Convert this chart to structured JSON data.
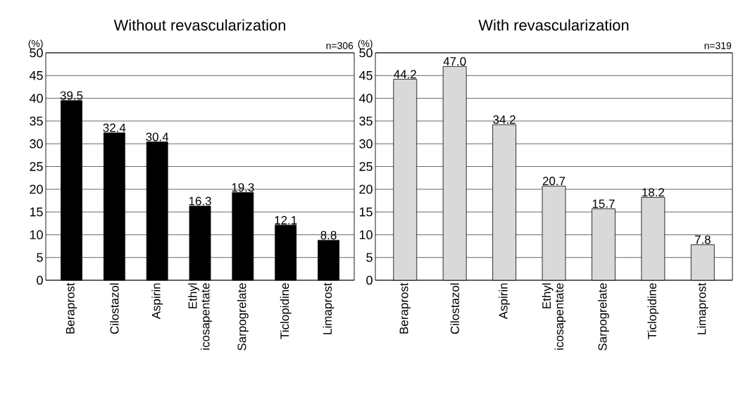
{
  "chart_data": [
    {
      "type": "bar",
      "title": "Without revascularization",
      "ylabel": "(%)",
      "annotations": [
        "n=306"
      ],
      "categories": [
        "Beraprost",
        "Cilostazol",
        "Aspirin",
        "Ethyl icosapentate",
        "Sarpogrelate",
        "Ticlopidine",
        "Limaprost"
      ],
      "values": [
        39.5,
        32.4,
        30.4,
        16.3,
        19.3,
        12.1,
        8.8
      ],
      "color": "#000000",
      "ylim": [
        0,
        50
      ],
      "yticks": [
        0,
        5,
        10,
        15,
        20,
        25,
        30,
        35,
        40,
        45,
        50
      ],
      "grid": "y",
      "data_labels": true
    },
    {
      "type": "bar",
      "title": "With revascularization",
      "ylabel": "(%)",
      "annotations": [
        "n=319"
      ],
      "categories": [
        "Beraprost",
        "Cilostazol",
        "Aspirin",
        "Ethyl icosapentate",
        "Sarpogrelate",
        "Ticlopidine",
        "Limaprost"
      ],
      "values": [
        44.2,
        47.0,
        34.2,
        20.7,
        15.7,
        18.2,
        7.8
      ],
      "value_labels": [
        "44.2",
        "47.0",
        "34.2",
        "20.7",
        "15.7",
        "18.2",
        "7.8"
      ],
      "color": "#d9d9d9",
      "ylim": [
        0,
        50
      ],
      "yticks": [
        0,
        5,
        10,
        15,
        20,
        25,
        30,
        35,
        40,
        45,
        50
      ],
      "grid": "y"
    }
  ]
}
